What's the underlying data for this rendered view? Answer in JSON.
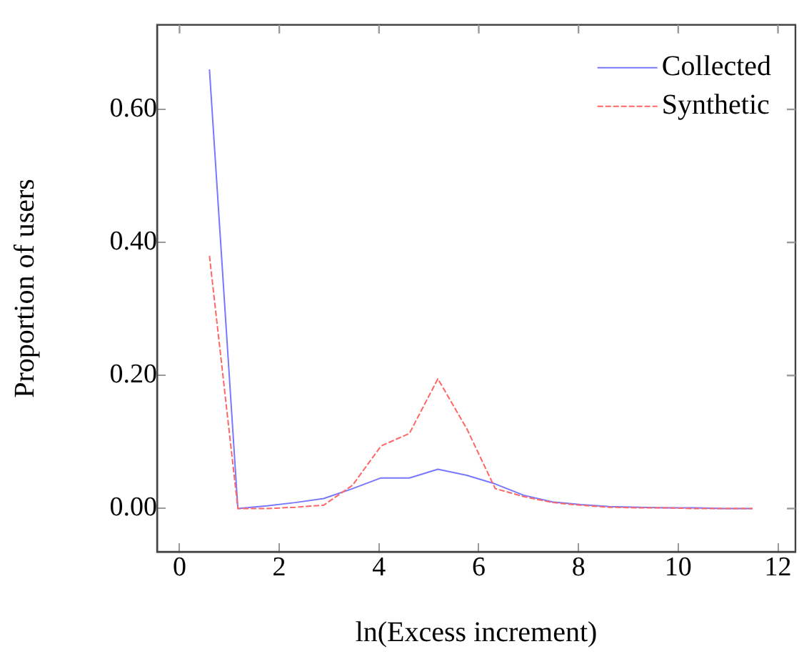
{
  "chart_data": {
    "type": "line",
    "xlabel": "ln(Excess increment)",
    "ylabel": "Proportion of users",
    "x": [
      0.6,
      1.17,
      1.75,
      2.32,
      2.89,
      3.47,
      4.04,
      4.61,
      5.18,
      5.76,
      6.33,
      6.9,
      7.48,
      8.05,
      8.62,
      9.2,
      9.77,
      10.34,
      10.91,
      11.49
    ],
    "series": [
      {
        "name": "Collected",
        "color": "#7777ff",
        "line_style": "solid",
        "values": [
          0.66,
          0.0,
          0.004,
          0.009,
          0.015,
          0.03,
          0.046,
          0.046,
          0.059,
          0.05,
          0.037,
          0.02,
          0.01,
          0.006,
          0.003,
          0.002,
          0.001,
          0.001,
          0.0,
          0.0
        ]
      },
      {
        "name": "Synthetic",
        "color": "#ff6666",
        "line_style": "dashed",
        "values": [
          0.38,
          0.0,
          0.0,
          0.002,
          0.005,
          0.035,
          0.094,
          0.113,
          0.195,
          0.12,
          0.03,
          0.018,
          0.009,
          0.005,
          0.002,
          0.001,
          0.001,
          0.0,
          0.0,
          0.0
        ]
      }
    ],
    "xlim": [
      -0.45,
      12.35
    ],
    "xticks": [
      0,
      2,
      4,
      6,
      8,
      10,
      12
    ],
    "ylim": [
      -0.065,
      0.727
    ],
    "yticks": [
      {
        "value": 0,
        "label": "0.00"
      },
      {
        "value": 0.2,
        "label": "0.20"
      },
      {
        "value": 0.4,
        "label": "0.40"
      },
      {
        "value": 0.6,
        "label": "0.60"
      }
    ],
    "grid": false,
    "legend": "top right",
    "marker": "none"
  }
}
